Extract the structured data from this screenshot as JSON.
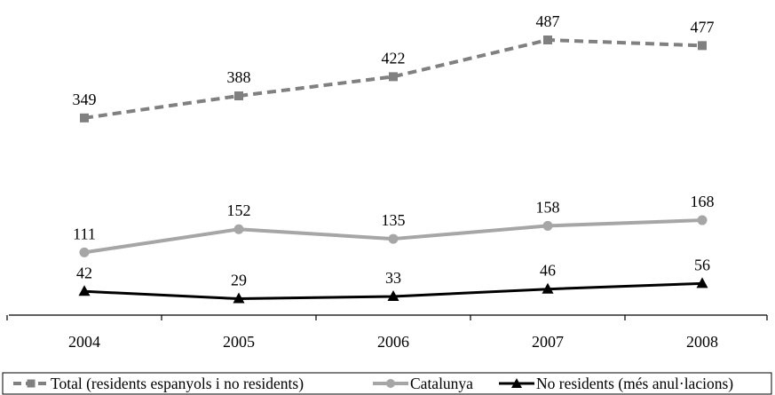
{
  "chart_data": {
    "type": "line",
    "categories": [
      "2004",
      "2005",
      "2006",
      "2007",
      "2008"
    ],
    "series": [
      {
        "name": "Total (residents espanyols i no residents)",
        "values": [
          349,
          388,
          422,
          487,
          477
        ],
        "color": "#808080",
        "style": "dashed",
        "marker": "square"
      },
      {
        "name": "Catalunya",
        "values": [
          111,
          152,
          135,
          158,
          168
        ],
        "color": "#a6a6a6",
        "style": "solid",
        "marker": "circle"
      },
      {
        "name": "No residents (més anul·lacions)",
        "values": [
          42,
          29,
          33,
          46,
          56
        ],
        "color": "#000000",
        "style": "solid",
        "marker": "triangle"
      }
    ],
    "ylim": [
      0,
      520
    ],
    "grid": false,
    "legend": "bottom",
    "y_axis_visible": false
  }
}
